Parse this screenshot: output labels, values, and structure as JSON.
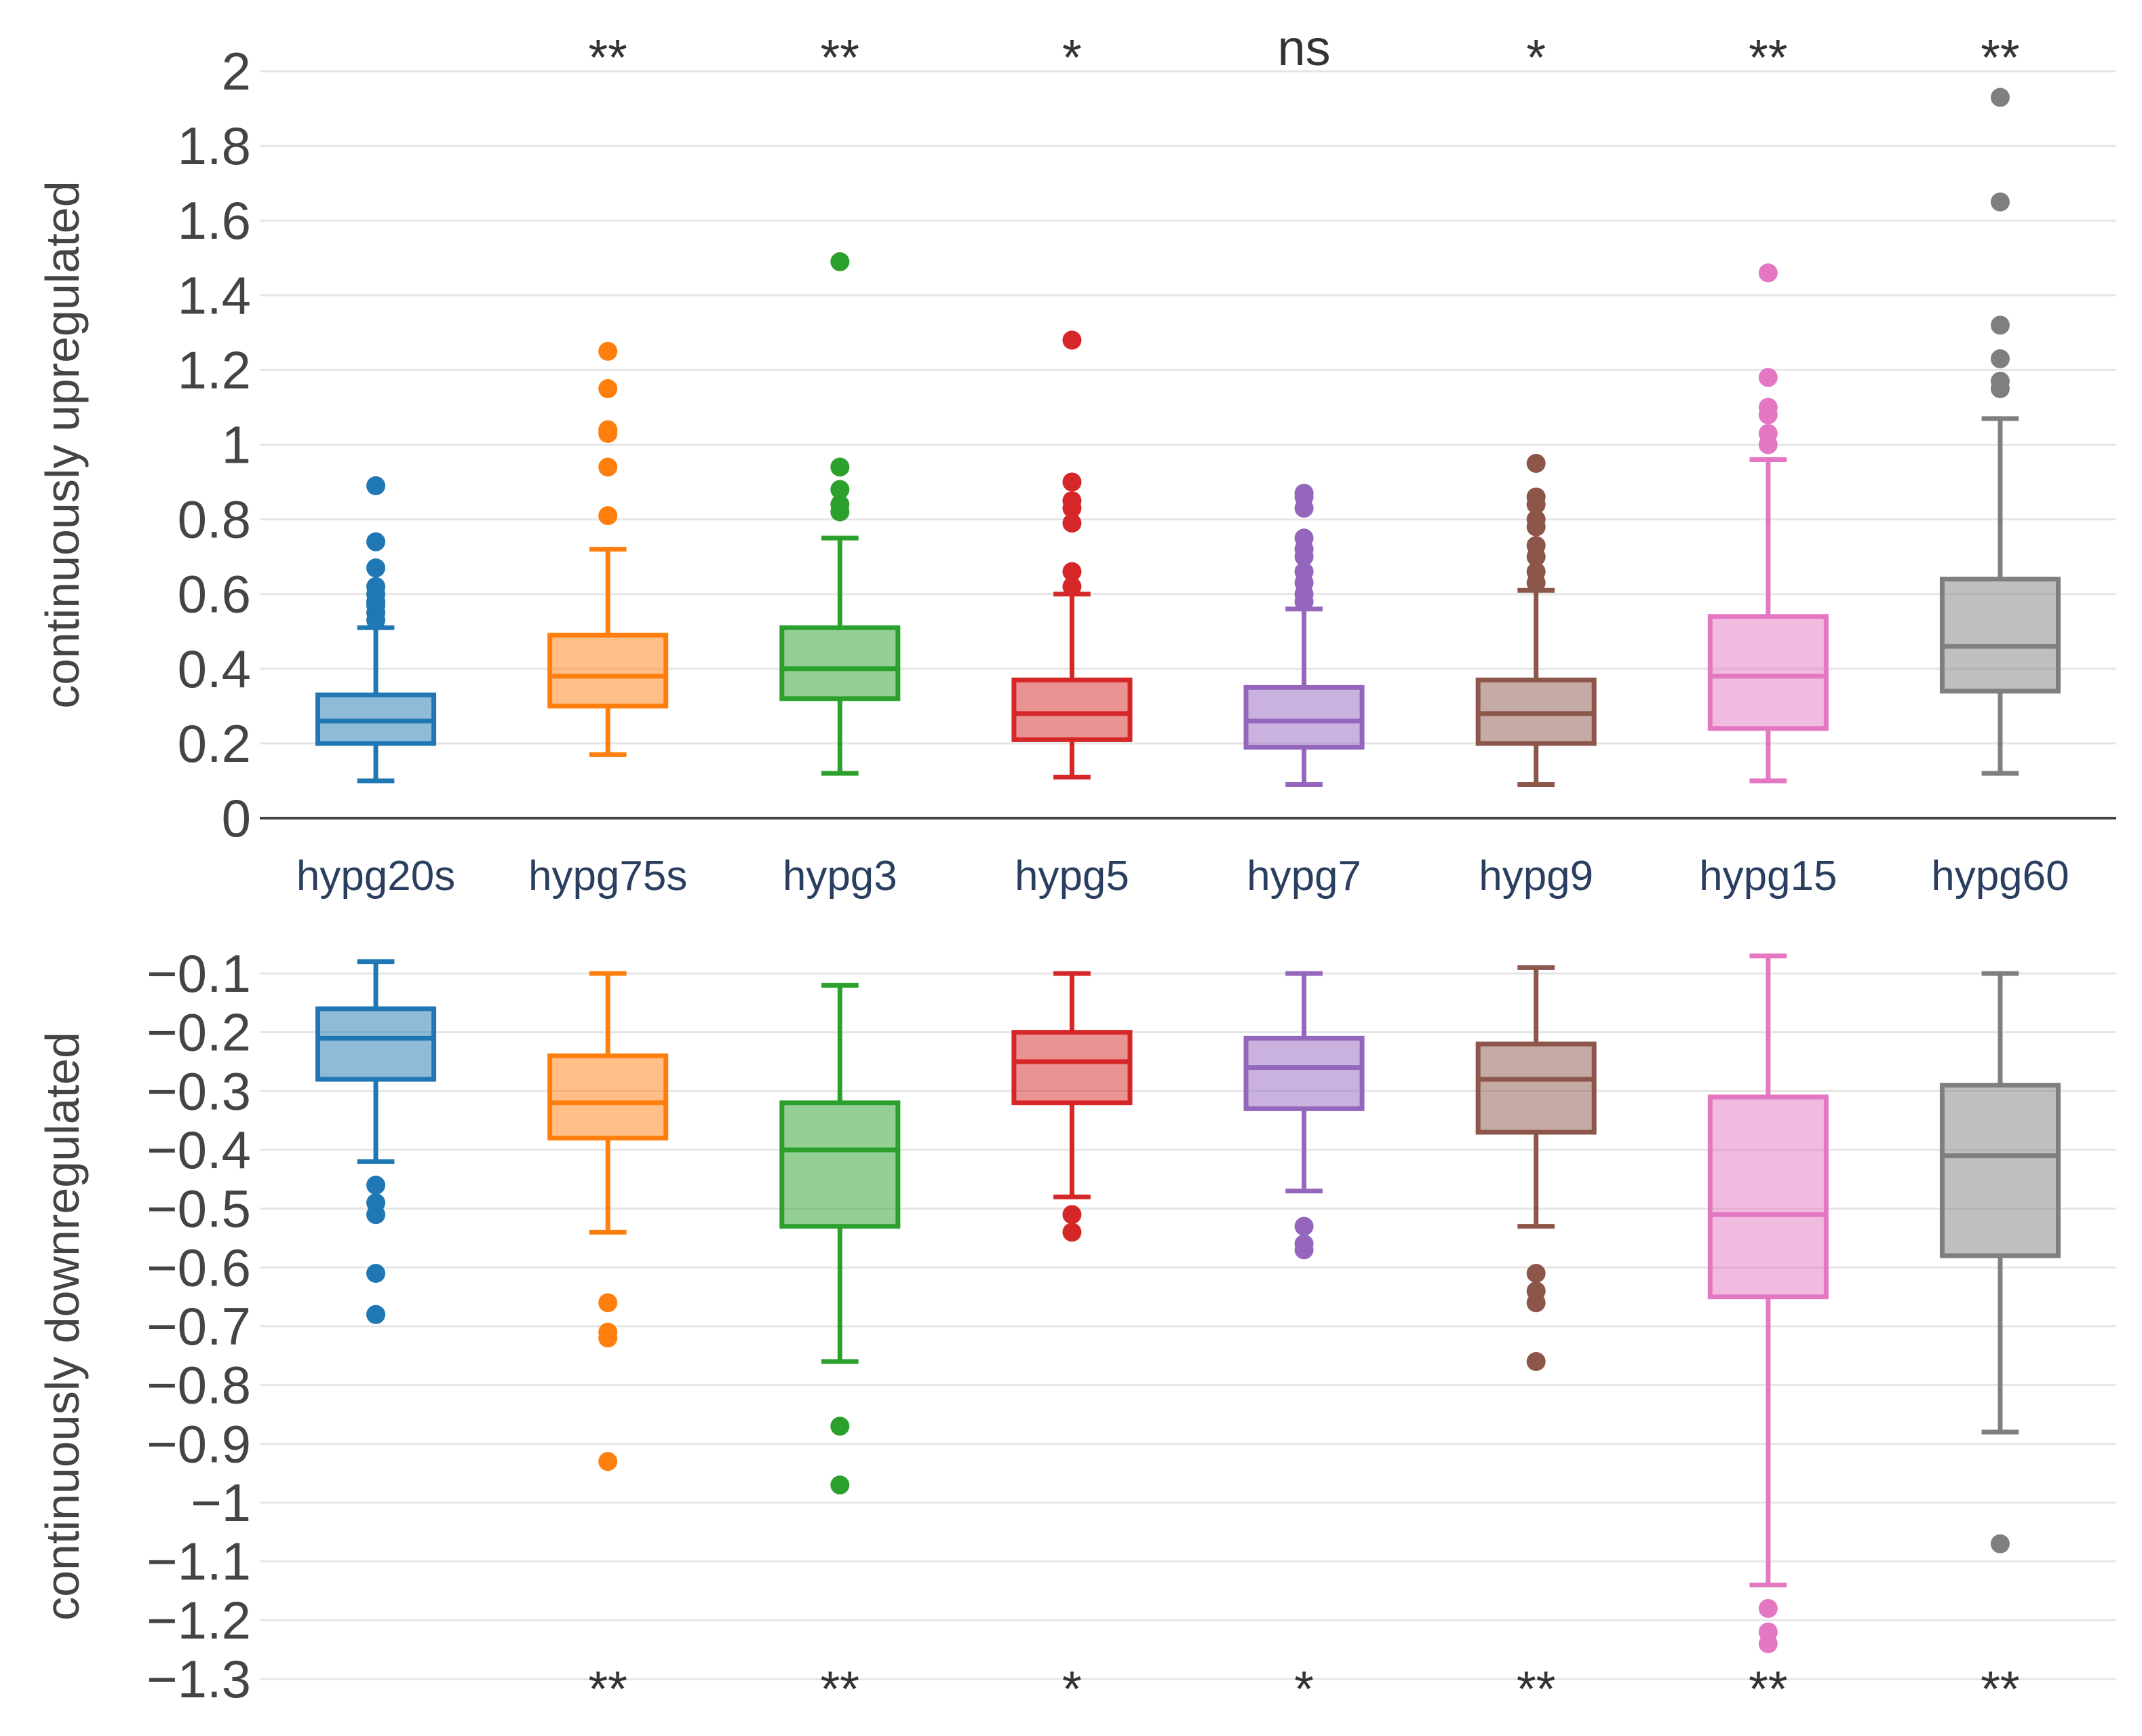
{
  "chart_data": {
    "type": "box",
    "categories": [
      "hypg20s",
      "hypg75s",
      "hypg3",
      "hypg5",
      "hypg7",
      "hypg9",
      "hypg15",
      "hypg60"
    ],
    "colors": [
      "#1f77b4",
      "#ff7f0e",
      "#2ca02c",
      "#d62728",
      "#9467bd",
      "#8c564b",
      "#e377c2",
      "#7f7f7f"
    ],
    "panels": [
      {
        "ylabel": "continuously upregulated",
        "ylim": [
          0,
          2
        ],
        "yticks": [
          0,
          0.2,
          0.4,
          0.6,
          0.8,
          1,
          1.2,
          1.4,
          1.6,
          1.8,
          2
        ],
        "ytick_labels": [
          "0",
          "0.2",
          "0.4",
          "0.6",
          "0.8",
          "1",
          "1.2",
          "1.4",
          "1.6",
          "1.8",
          "2"
        ],
        "significance": [
          "",
          "**",
          "**",
          "*",
          "ns",
          "*",
          "**",
          "**"
        ],
        "boxes": [
          {
            "q1": 0.2,
            "median": 0.26,
            "q3": 0.33,
            "lower_whisker": 0.1,
            "upper_whisker": 0.51,
            "outliers": [
              0.53,
              0.55,
              0.57,
              0.58,
              0.6,
              0.62,
              0.67,
              0.74,
              0.89
            ]
          },
          {
            "q1": 0.3,
            "median": 0.38,
            "q3": 0.49,
            "lower_whisker": 0.17,
            "upper_whisker": 0.72,
            "outliers": [
              0.81,
              0.94,
              1.03,
              1.04,
              1.15,
              1.25
            ]
          },
          {
            "q1": 0.32,
            "median": 0.4,
            "q3": 0.51,
            "lower_whisker": 0.12,
            "upper_whisker": 0.75,
            "outliers": [
              0.82,
              0.84,
              0.88,
              0.94,
              1.49
            ]
          },
          {
            "q1": 0.21,
            "median": 0.28,
            "q3": 0.37,
            "lower_whisker": 0.11,
            "upper_whisker": 0.6,
            "outliers": [
              0.62,
              0.66,
              0.79,
              0.83,
              0.85,
              0.9,
              1.28
            ]
          },
          {
            "q1": 0.19,
            "median": 0.26,
            "q3": 0.35,
            "lower_whisker": 0.09,
            "upper_whisker": 0.56,
            "outliers": [
              0.58,
              0.6,
              0.63,
              0.66,
              0.7,
              0.72,
              0.75,
              0.83,
              0.86,
              0.87
            ]
          },
          {
            "q1": 0.2,
            "median": 0.28,
            "q3": 0.37,
            "lower_whisker": 0.09,
            "upper_whisker": 0.61,
            "outliers": [
              0.63,
              0.66,
              0.7,
              0.73,
              0.78,
              0.8,
              0.84,
              0.86,
              0.95
            ]
          },
          {
            "q1": 0.24,
            "median": 0.38,
            "q3": 0.54,
            "lower_whisker": 0.1,
            "upper_whisker": 0.96,
            "outliers": [
              1.0,
              1.03,
              1.08,
              1.1,
              1.18,
              1.46
            ]
          },
          {
            "q1": 0.34,
            "median": 0.46,
            "q3": 0.64,
            "lower_whisker": 0.12,
            "upper_whisker": 1.07,
            "outliers": [
              1.15,
              1.17,
              1.23,
              1.32,
              1.65,
              1.93
            ]
          }
        ]
      },
      {
        "ylabel": "continuously downregulated",
        "ylim": [
          -1.3,
          -0.1
        ],
        "yticks": [
          -0.1,
          -0.2,
          -0.3,
          -0.4,
          -0.5,
          -0.6,
          -0.7,
          -0.8,
          -0.9,
          -1,
          -1.1,
          -1.2,
          -1.3
        ],
        "ytick_labels": [
          "−0.1",
          "−0.2",
          "−0.3",
          "−0.4",
          "−0.5",
          "−0.6",
          "−0.7",
          "−0.8",
          "−0.9",
          "−1",
          "−1.1",
          "−1.2",
          "−1.3"
        ],
        "significance": [
          "",
          "**",
          "**",
          "*",
          "*",
          "**",
          "**",
          "**"
        ],
        "boxes": [
          {
            "q1": -0.28,
            "median": -0.21,
            "q3": -0.16,
            "lower_whisker": -0.42,
            "upper_whisker": -0.08,
            "outliers": [
              -0.46,
              -0.49,
              -0.51,
              -0.61,
              -0.68
            ]
          },
          {
            "q1": -0.38,
            "median": -0.32,
            "q3": -0.24,
            "lower_whisker": -0.54,
            "upper_whisker": -0.1,
            "outliers": [
              -0.66,
              -0.71,
              -0.72,
              -0.93
            ]
          },
          {
            "q1": -0.53,
            "median": -0.4,
            "q3": -0.32,
            "lower_whisker": -0.76,
            "upper_whisker": -0.12,
            "outliers": [
              -0.87,
              -0.97
            ]
          },
          {
            "q1": -0.32,
            "median": -0.25,
            "q3": -0.2,
            "lower_whisker": -0.48,
            "upper_whisker": -0.1,
            "outliers": [
              -0.51,
              -0.54
            ]
          },
          {
            "q1": -0.33,
            "median": -0.26,
            "q3": -0.21,
            "lower_whisker": -0.47,
            "upper_whisker": -0.1,
            "outliers": [
              -0.53,
              -0.56,
              -0.57
            ]
          },
          {
            "q1": -0.37,
            "median": -0.28,
            "q3": -0.22,
            "lower_whisker": -0.53,
            "upper_whisker": -0.09,
            "outliers": [
              -0.61,
              -0.64,
              -0.66,
              -0.76
            ]
          },
          {
            "q1": -0.65,
            "median": -0.51,
            "q3": -0.31,
            "lower_whisker": -1.14,
            "upper_whisker": -0.07,
            "outliers": [
              -1.18,
              -1.22,
              -1.24
            ]
          },
          {
            "q1": -0.58,
            "median": -0.41,
            "q3": -0.29,
            "lower_whisker": -0.88,
            "upper_whisker": -0.1,
            "outliers": [
              -1.07
            ]
          }
        ]
      }
    ]
  }
}
